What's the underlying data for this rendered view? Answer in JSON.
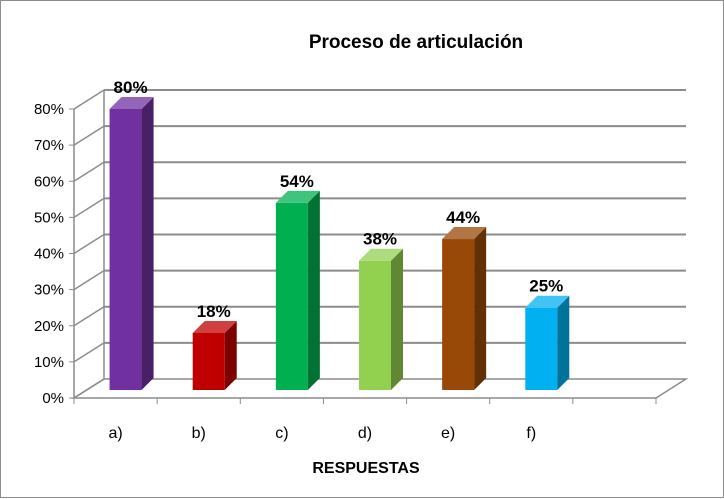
{
  "chart_data": {
    "type": "bar",
    "title": "Proceso de articulación",
    "xlabel": "RESPUESTAS",
    "ylabel": "",
    "categories": [
      "a)",
      "b)",
      "c)",
      "d)",
      "e)",
      "f)"
    ],
    "values": [
      80,
      18,
      54,
      38,
      44,
      25
    ],
    "data_labels": [
      "80%",
      "18%",
      "54%",
      "38%",
      "44%",
      "25%"
    ],
    "ylim": [
      0,
      80
    ],
    "yticks": [
      0,
      10,
      20,
      30,
      40,
      50,
      60,
      70,
      80
    ],
    "ytick_labels": [
      "0%",
      "10%",
      "20%",
      "30%",
      "40%",
      "50%",
      "60%",
      "70%",
      "80%"
    ],
    "grid": true,
    "legend": "none",
    "bar_colors": [
      "#7030A0",
      "#C00000",
      "#00B050",
      "#92D050",
      "#984807",
      "#00B0F0"
    ],
    "style": "3d-bars"
  }
}
